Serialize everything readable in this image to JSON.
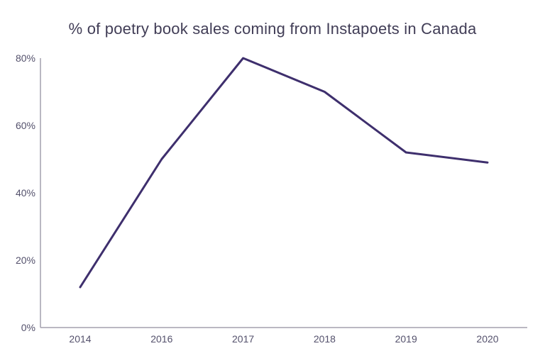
{
  "chart_data": {
    "type": "line",
    "title": "% of poetry book sales coming from Instapoets in Canada",
    "categories": [
      "2014",
      "2016",
      "2017",
      "2018",
      "2019",
      "2020"
    ],
    "values": [
      12,
      50,
      80,
      70,
      52,
      49
    ],
    "xlabel": "",
    "ylabel": "",
    "ylim": [
      0,
      80
    ],
    "yticks": [
      0,
      20,
      40,
      60,
      80
    ],
    "ytick_labels": [
      "0%",
      "20%",
      "40%",
      "60%",
      "80%"
    ],
    "grid": false,
    "legend": false,
    "colors": {
      "line": "#3e2f6d",
      "axis": "#a3a1ae",
      "tick_label": "#54516c",
      "title": "#413d56",
      "background": "#ffffff"
    }
  }
}
